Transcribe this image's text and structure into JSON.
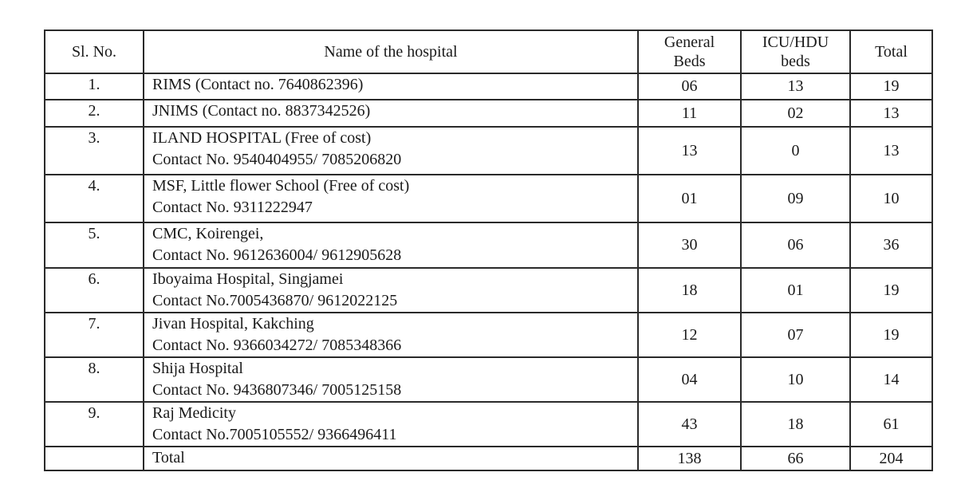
{
  "table": {
    "headers": {
      "sl_no": "Sl. No.",
      "name": "Name  of the hospital",
      "general_beds": [
        "General",
        "Beds"
      ],
      "icu_beds": [
        "ICU/HDU",
        "beds"
      ],
      "total": "Total"
    },
    "rows": [
      {
        "sl": "1.",
        "name": [
          "RIMS (Contact no. 7640862396)"
        ],
        "general": "06",
        "icu": "13",
        "total": "19"
      },
      {
        "sl": "2.",
        "name": [
          "JNIMS (Contact no. 8837342526)"
        ],
        "general": "11",
        "icu": "02",
        "total": "13"
      },
      {
        "sl": "3.",
        "name": [
          "ILAND HOSPITAL (Free of cost)",
          "Contact No. 9540404955/ 7085206820"
        ],
        "general": "13",
        "icu": "0",
        "total": "13"
      },
      {
        "sl": "4.",
        "name": [
          "MSF, Little flower School (Free of cost)",
          "Contact No. 9311222947"
        ],
        "general": "01",
        "icu": "09",
        "total": "10"
      },
      {
        "sl": "5.",
        "name": [
          "CMC, Koirengei,",
          "Contact No. 9612636004/ 9612905628"
        ],
        "general": "30",
        "icu": "06",
        "total": "36"
      },
      {
        "sl": "6.",
        "name": [
          "Iboyaima Hospital, Singjamei",
          "Contact No.7005436870/ 9612022125"
        ],
        "general": "18",
        "icu": "01",
        "total": "19"
      },
      {
        "sl": "7.",
        "name": [
          "Jivan Hospital, Kakching",
          "Contact No. 9366034272/ 7085348366"
        ],
        "general": "12",
        "icu": "07",
        "total": "19"
      },
      {
        "sl": "8.",
        "name": [
          "Shija Hospital",
          "Contact No. 9436807346/ 7005125158"
        ],
        "general": "04",
        "icu": "10",
        "total": "14"
      },
      {
        "sl": "9.",
        "name": [
          "Raj  Medicity",
          "Contact No.7005105552/ 9366496411"
        ],
        "general": "43",
        "icu": "18",
        "total": "61"
      }
    ],
    "total_row": {
      "label": "Total",
      "general": "138",
      "icu": "66",
      "total": "204"
    }
  }
}
